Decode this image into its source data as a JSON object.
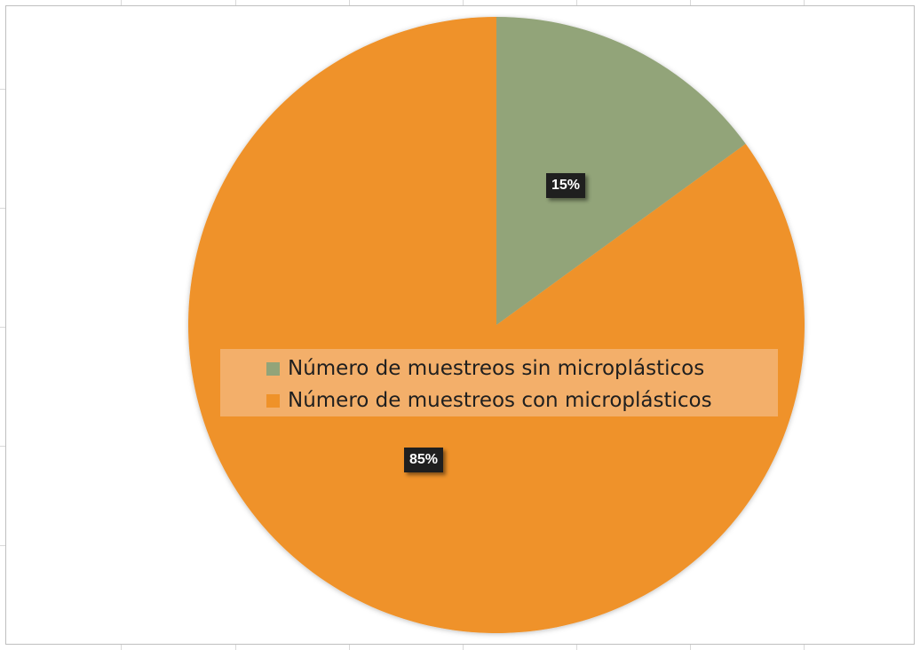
{
  "chart_data": {
    "type": "pie",
    "title": "",
    "series": [
      {
        "name": "Número de muestreos sin microplásticos",
        "value": 15,
        "color": "#92a479"
      },
      {
        "name": "Número de muestreos con microplásticos",
        "value": 85,
        "color": "#ef9229"
      }
    ],
    "data_labels": [
      "15%",
      "85%"
    ],
    "legend_placement": "center"
  }
}
